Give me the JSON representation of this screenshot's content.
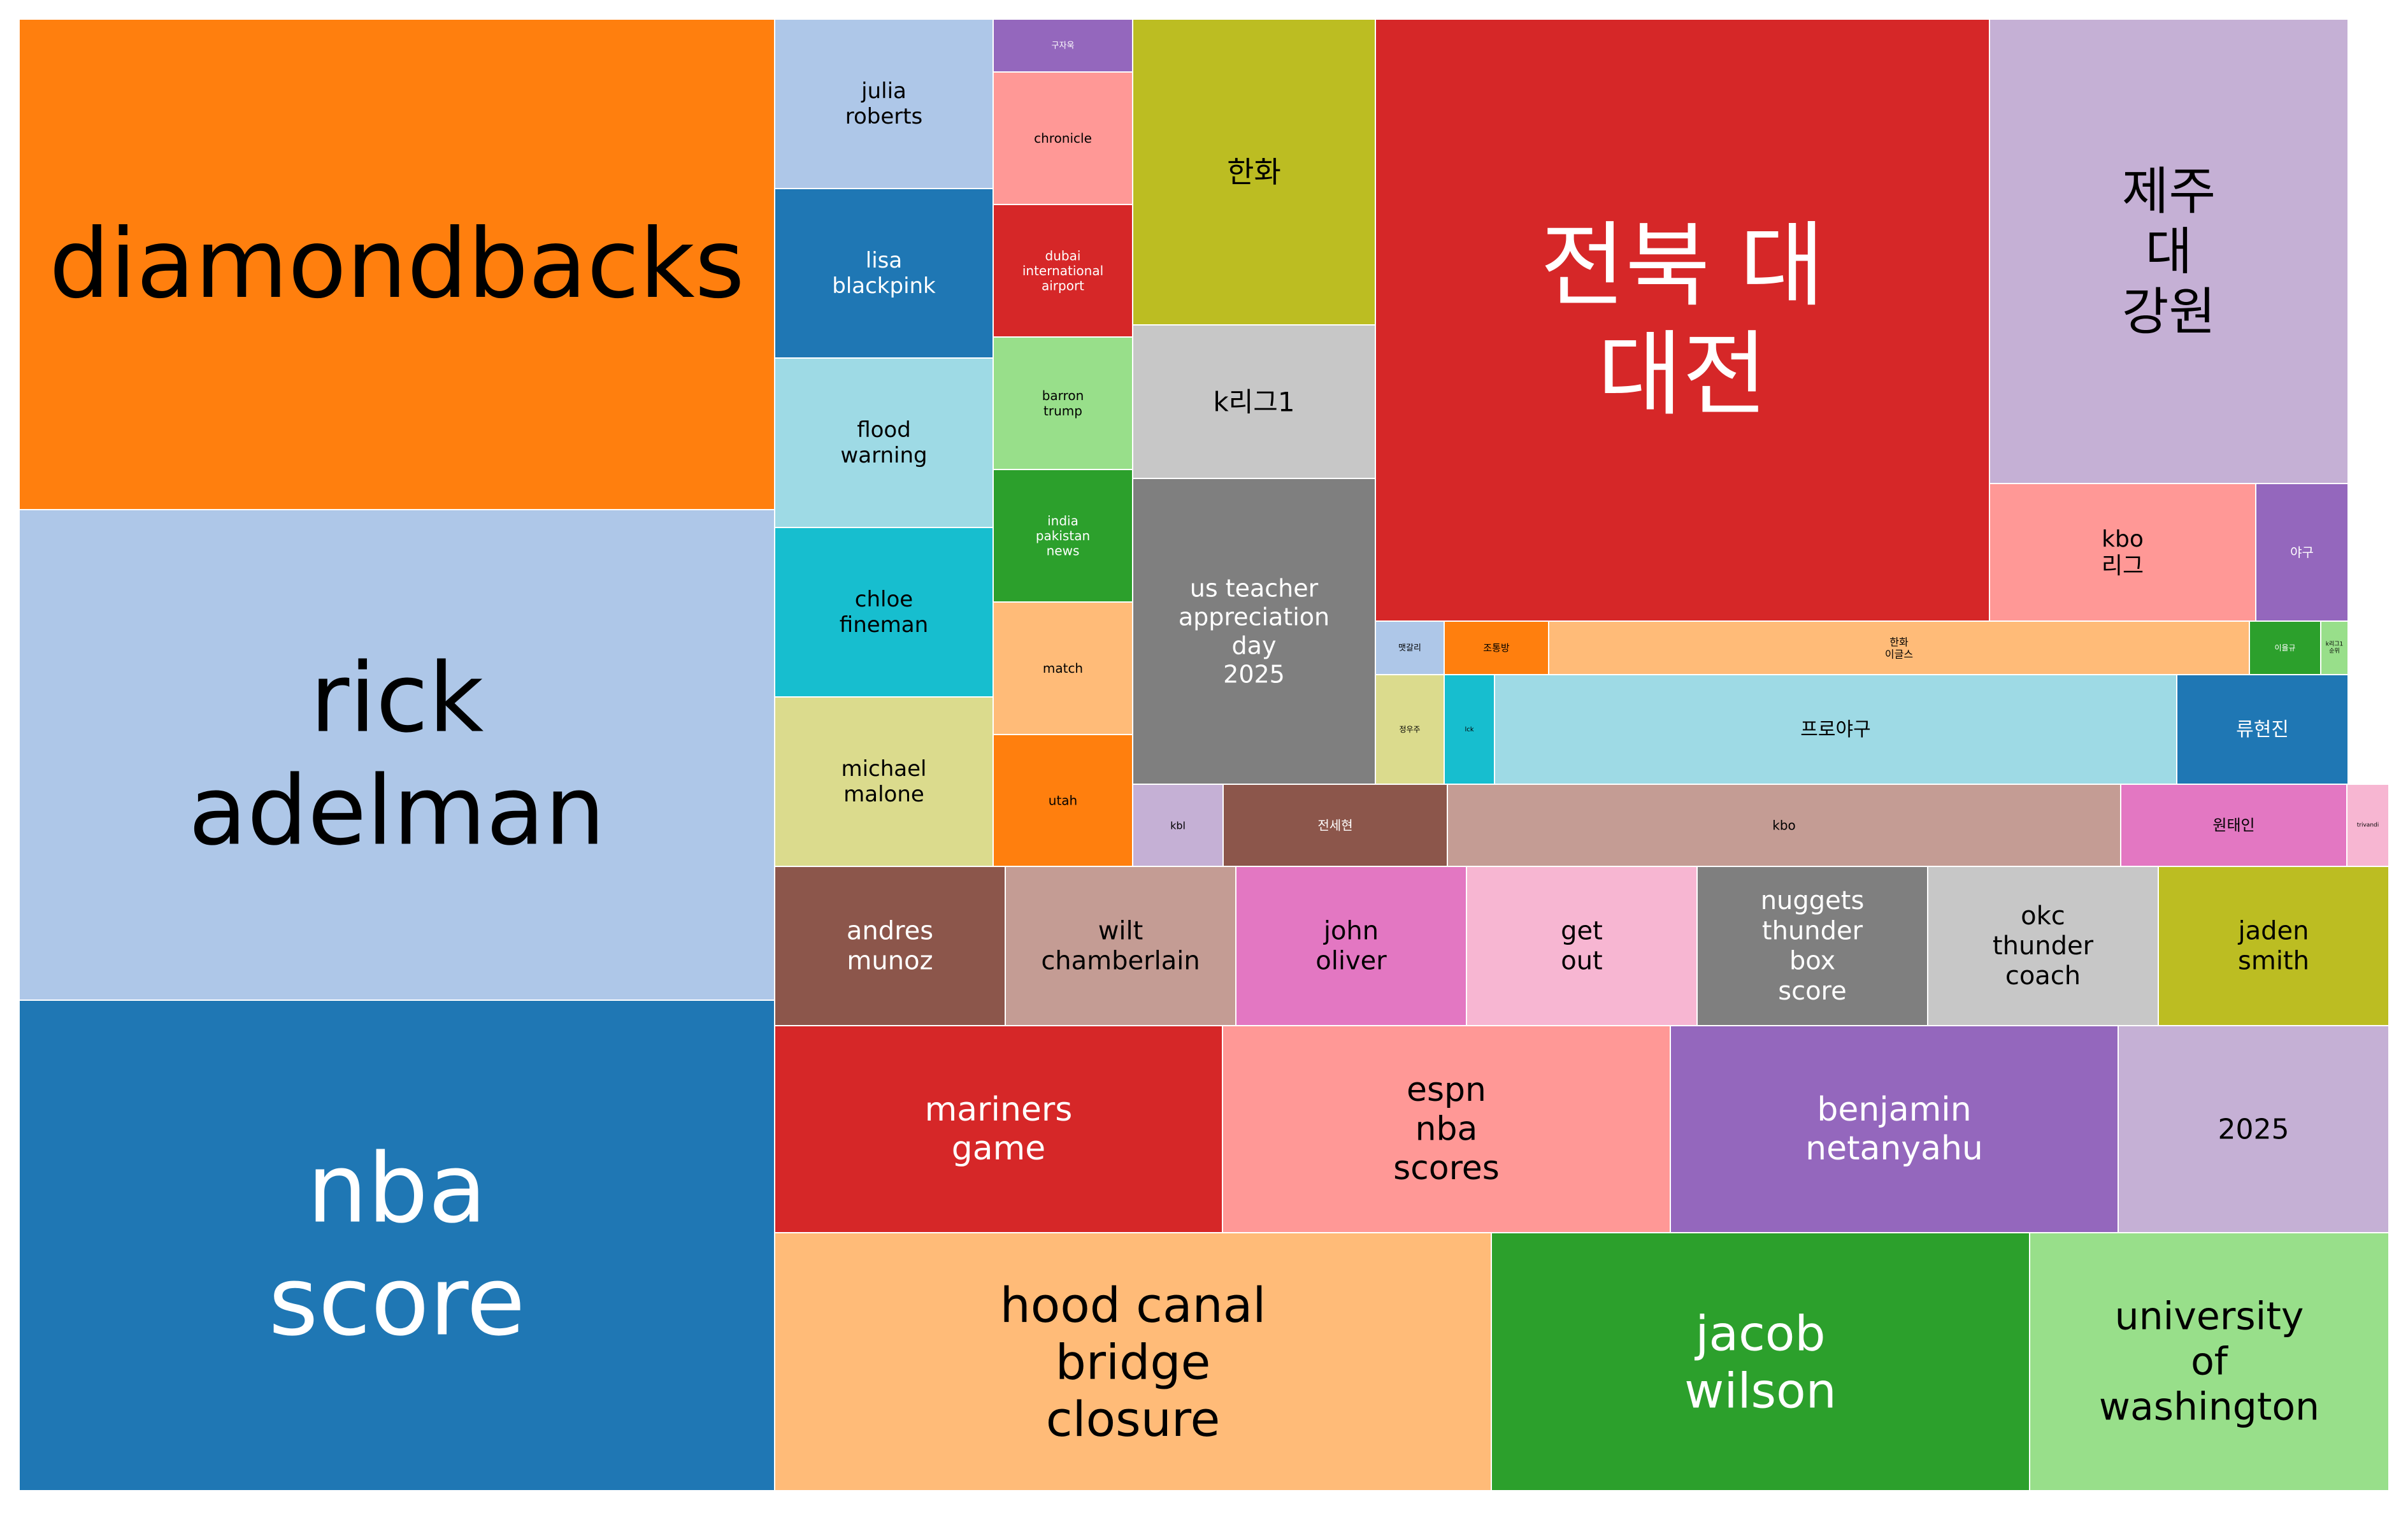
{
  "chart_data": {
    "type": "treemap",
    "title": "",
    "tiles": [
      {
        "label": "diamondbacks",
        "fill": "#ff7f0e",
        "text_color": "#000000"
      },
      {
        "label": "rick\nadelman",
        "fill": "#aec7e8",
        "text_color": "#000000"
      },
      {
        "label": "nba\nscore",
        "fill": "#1f77b4",
        "text_color": "#ffffff"
      },
      {
        "label": "julia\nroberts",
        "fill": "#aec7e8",
        "text_color": "#000000"
      },
      {
        "label": "lisa\nblackpink",
        "fill": "#1f77b4",
        "text_color": "#ffffff"
      },
      {
        "label": "flood\nwarning",
        "fill": "#9edae5",
        "text_color": "#000000"
      },
      {
        "label": "chloe\nfineman",
        "fill": "#17becf",
        "text_color": "#000000"
      },
      {
        "label": "michael\nmalone",
        "fill": "#dbdb8d",
        "text_color": "#000000"
      },
      {
        "label": "구자욱",
        "fill": "#9467bd",
        "text_color": "#ffffff"
      },
      {
        "label": "chronicle",
        "fill": "#ff9896",
        "text_color": "#000000"
      },
      {
        "label": "dubai\ninternational\nairport",
        "fill": "#d62728",
        "text_color": "#ffffff"
      },
      {
        "label": "barron\ntrump",
        "fill": "#98df8a",
        "text_color": "#000000"
      },
      {
        "label": "india\npakistan\nnews",
        "fill": "#2ca02c",
        "text_color": "#ffffff"
      },
      {
        "label": "match",
        "fill": "#ffbb78",
        "text_color": "#000000"
      },
      {
        "label": "utah",
        "fill": "#ff7f0e",
        "text_color": "#000000"
      },
      {
        "label": "한화",
        "fill": "#bcbd22",
        "text_color": "#000000"
      },
      {
        "label": "k리그1",
        "fill": "#c7c7c7",
        "text_color": "#000000"
      },
      {
        "label": "us teacher\nappreciation\nday\n2025",
        "fill": "#7f7f7f",
        "text_color": "#ffffff"
      },
      {
        "label": "전북 대\n대전",
        "fill": "#d62728",
        "text_color": "#ffffff"
      },
      {
        "label": "제주\n대\n강원",
        "fill": "#c5b0d5",
        "text_color": "#000000"
      },
      {
        "label": "kbo\n리그",
        "fill": "#ff9896",
        "text_color": "#000000"
      },
      {
        "label": "야구",
        "fill": "#9467bd",
        "text_color": "#ffffff"
      },
      {
        "label": "맷갈리",
        "fill": "#aec7e8",
        "text_color": "#000000"
      },
      {
        "label": "조통방",
        "fill": "#ff7f0e",
        "text_color": "#000000"
      },
      {
        "label": "한화\n이글스",
        "fill": "#ffbb78",
        "text_color": "#000000"
      },
      {
        "label": "이율규",
        "fill": "#2ca02c",
        "text_color": "#ffffff"
      },
      {
        "label": "k리그1\n순위",
        "fill": "#98df8a",
        "text_color": "#000000"
      },
      {
        "label": "정우주",
        "fill": "#dbdb8d",
        "text_color": "#000000"
      },
      {
        "label": "lck",
        "fill": "#17becf",
        "text_color": "#000000"
      },
      {
        "label": "프로야구",
        "fill": "#9edae5",
        "text_color": "#000000"
      },
      {
        "label": "류현진",
        "fill": "#1f77b4",
        "text_color": "#ffffff"
      },
      {
        "label": "kbl",
        "fill": "#c5b0d5",
        "text_color": "#000000"
      },
      {
        "label": "전세현",
        "fill": "#8c564b",
        "text_color": "#ffffff"
      },
      {
        "label": "kbo",
        "fill": "#c49c94",
        "text_color": "#000000"
      },
      {
        "label": "원태인",
        "fill": "#e377c2",
        "text_color": "#000000"
      },
      {
        "label": "trivandi",
        "fill": "#f7b6d2",
        "text_color": "#000000"
      },
      {
        "label": "andres\nmunoz",
        "fill": "#8c564b",
        "text_color": "#ffffff"
      },
      {
        "label": "wilt\nchamberlain",
        "fill": "#c49c94",
        "text_color": "#000000"
      },
      {
        "label": "john\noliver",
        "fill": "#e377c2",
        "text_color": "#000000"
      },
      {
        "label": "get\nout",
        "fill": "#f7b6d2",
        "text_color": "#000000"
      },
      {
        "label": "nuggets\nthunder\nbox\nscore",
        "fill": "#7f7f7f",
        "text_color": "#ffffff"
      },
      {
        "label": "okc\nthunder\ncoach",
        "fill": "#c7c7c7",
        "text_color": "#000000"
      },
      {
        "label": "jaden\nsmith",
        "fill": "#bcbd22",
        "text_color": "#000000"
      },
      {
        "label": "mariners\ngame",
        "fill": "#d62728",
        "text_color": "#ffffff"
      },
      {
        "label": "espn\nnba\nscores",
        "fill": "#ff9896",
        "text_color": "#000000"
      },
      {
        "label": "benjamin\nnetanyahu",
        "fill": "#9467bd",
        "text_color": "#ffffff"
      },
      {
        "label": "2025",
        "fill": "#c5b0d5",
        "text_color": "#000000"
      },
      {
        "label": "hood canal\nbridge\nclosure",
        "fill": "#ffbb78",
        "text_color": "#000000"
      },
      {
        "label": "jacob\nwilson",
        "fill": "#2ca02c",
        "text_color": "#ffffff"
      },
      {
        "label": "university\nof\nwashington",
        "fill": "#98df8a",
        "text_color": "#000000"
      }
    ]
  }
}
